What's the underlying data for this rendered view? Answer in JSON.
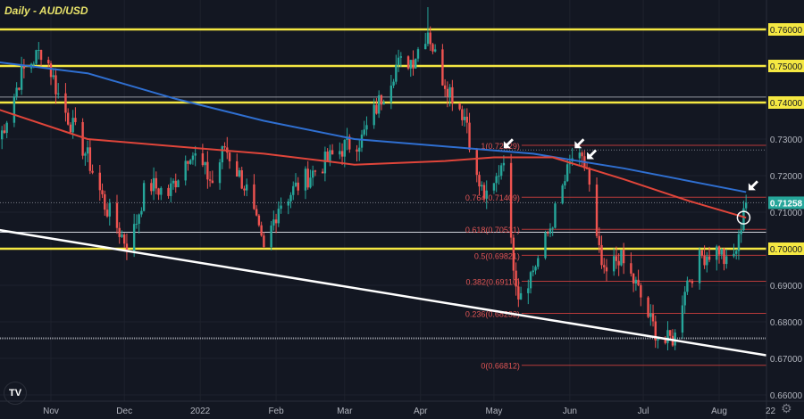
{
  "title": "Daily - AUD/USD",
  "logo": "TV",
  "settings_icon": "gear-icon",
  "colors": {
    "background": "#131722",
    "up": "#26a69a",
    "down": "#ef5350",
    "ma_blue": "#2f6fd1",
    "ma_red": "#e0453a",
    "support_resistance": "#f5e842",
    "fib": "#b83a3a",
    "trendline": "#ffffff",
    "last_price_badge": "#26a69a"
  },
  "chart_data": {
    "type": "candlestick",
    "title": "Daily - AUD/USD",
    "xlim": [
      "2021-10-11",
      "2022-08-28"
    ],
    "ylim": [
      0.655,
      0.767
    ],
    "grid": true,
    "x_ticks": [
      {
        "label": "Nov",
        "date": "2021-11-01"
      },
      {
        "label": "Dec",
        "date": "2021-12-01"
      },
      {
        "label": "2022",
        "date": "2022-01-01"
      },
      {
        "label": "Feb",
        "date": "2022-02-01"
      },
      {
        "label": "Mar",
        "date": "2022-03-01"
      },
      {
        "label": "Apr",
        "date": "2022-04-01"
      },
      {
        "label": "May",
        "date": "2022-05-01"
      },
      {
        "label": "Jun",
        "date": "2022-06-01"
      },
      {
        "label": "Jul",
        "date": "2022-07-01"
      },
      {
        "label": "Aug",
        "date": "2022-08-01"
      },
      {
        "label": "22",
        "date": "2022-08-22"
      }
    ],
    "y_ticks": [
      "0.76000",
      "0.75000",
      "0.74000",
      "0.73000",
      "0.72000",
      "0.71000",
      "0.70000",
      "0.69000",
      "0.68000",
      "0.67000",
      "0.66000"
    ],
    "highlighted_y_ticks": [
      "0.76000",
      "0.75000",
      "0.74000",
      "0.70000"
    ],
    "last_price": "0.71258",
    "price_path": [
      [
        "2021-10-11",
        0.73
      ],
      [
        "2021-10-20",
        0.748
      ],
      [
        "2021-10-29",
        0.755
      ],
      [
        "2021-11-05",
        0.74
      ],
      [
        "2021-11-16",
        0.725
      ],
      [
        "2021-11-23",
        0.712
      ],
      [
        "2021-12-03",
        0.7
      ],
      [
        "2021-12-10",
        0.718
      ],
      [
        "2021-12-19",
        0.715
      ],
      [
        "2021-12-28",
        0.727
      ],
      [
        "2022-01-06",
        0.718
      ],
      [
        "2022-01-11",
        0.728
      ],
      [
        "2022-01-20",
        0.716
      ],
      [
        "2022-01-27",
        0.699
      ],
      [
        "2022-02-02",
        0.712
      ],
      [
        "2022-02-11",
        0.718
      ],
      [
        "2022-02-18",
        0.722
      ],
      [
        "2022-03-01",
        0.728
      ],
      [
        "2022-03-08",
        0.73
      ],
      [
        "2022-03-15",
        0.74
      ],
      [
        "2022-03-22",
        0.75
      ],
      [
        "2022-03-29",
        0.752
      ],
      [
        "2022-04-04",
        0.76
      ],
      [
        "2022-04-09",
        0.748
      ],
      [
        "2022-04-16",
        0.74
      ],
      [
        "2022-04-20",
        0.735
      ],
      [
        "2022-04-23",
        0.72
      ],
      [
        "2022-04-29",
        0.712
      ],
      [
        "2022-05-05",
        0.726
      ],
      [
        "2022-05-07",
        0.705
      ],
      [
        "2022-05-11",
        0.688
      ],
      [
        "2022-05-16",
        0.693
      ],
      [
        "2022-05-21",
        0.7
      ],
      [
        "2022-05-27",
        0.712
      ],
      [
        "2022-06-02",
        0.725
      ],
      [
        "2022-06-08",
        0.722
      ],
      [
        "2022-06-11",
        0.705
      ],
      [
        "2022-06-15",
        0.692
      ],
      [
        "2022-06-21",
        0.698
      ],
      [
        "2022-06-28",
        0.69
      ],
      [
        "2022-07-04",
        0.68
      ],
      [
        "2022-07-09",
        0.674
      ],
      [
        "2022-07-14",
        0.676
      ],
      [
        "2022-07-18",
        0.69
      ],
      [
        "2022-07-25",
        0.698
      ],
      [
        "2022-08-01",
        0.7
      ],
      [
        "2022-08-05",
        0.694
      ],
      [
        "2022-08-09",
        0.702
      ],
      [
        "2022-08-11",
        0.712
      ],
      [
        "2022-08-12",
        0.7126
      ]
    ],
    "moving_averages": [
      {
        "color": "blue",
        "values": [
          [
            "2021-10-11",
            0.751
          ],
          [
            "2021-11-16",
            0.748
          ],
          [
            "2021-12-22",
            0.741
          ],
          [
            "2022-01-27",
            0.735
          ],
          [
            "2022-03-05",
            0.73
          ],
          [
            "2022-04-11",
            0.728
          ],
          [
            "2022-05-17",
            0.726
          ],
          [
            "2022-06-23",
            0.722
          ],
          [
            "2022-08-12",
            0.7155
          ]
        ]
      },
      {
        "color": "red",
        "values": [
          [
            "2021-10-11",
            0.738
          ],
          [
            "2021-11-16",
            0.73
          ],
          [
            "2021-12-22",
            0.728
          ],
          [
            "2022-01-27",
            0.726
          ],
          [
            "2022-03-05",
            0.723
          ],
          [
            "2022-04-11",
            0.724
          ],
          [
            "2022-05-01",
            0.725
          ],
          [
            "2022-05-25",
            0.725
          ],
          [
            "2022-06-23",
            0.719
          ],
          [
            "2022-07-20",
            0.713
          ],
          [
            "2022-08-12",
            0.7085
          ]
        ]
      }
    ],
    "horizontal_levels": [
      {
        "price": 0.76,
        "style": "yellow"
      },
      {
        "price": 0.75,
        "style": "yellow"
      },
      {
        "price": 0.74,
        "style": "yellow"
      },
      {
        "price": 0.7,
        "style": "yellow"
      },
      {
        "price": 0.7415,
        "style": "gray"
      },
      {
        "price": 0.7045,
        "style": "white"
      },
      {
        "price": 0.6755,
        "style": "gray-dotted"
      },
      {
        "price": 0.727,
        "style": "dotted"
      },
      {
        "price": 0.71258,
        "style": "dotted"
      }
    ],
    "fibonacci": {
      "start_date": "2022-05-05",
      "levels": [
        {
          "label": "1(0.72829)",
          "price": 0.72829
        },
        {
          "label": "0.764(0.71409)",
          "price": 0.71409
        },
        {
          "label": "0.618(0.70531)",
          "price": 0.70531
        },
        {
          "label": "0.5(0.69821)",
          "price": 0.69821
        },
        {
          "label": "0.382(0.69110)",
          "price": 0.6911
        },
        {
          "label": "0.236(0.68232)",
          "price": 0.68232
        },
        {
          "label": "0(0.66812)",
          "price": 0.66812
        }
      ]
    },
    "trendline": [
      [
        "2021-10-11",
        0.7051
      ],
      [
        "2022-08-28",
        0.67
      ]
    ],
    "annotations": [
      {
        "type": "arrow",
        "date": "2022-05-05",
        "price": 0.7275
      },
      {
        "type": "arrow",
        "date": "2022-06-03",
        "price": 0.7275
      },
      {
        "type": "arrow",
        "date": "2022-06-08",
        "price": 0.7245
      },
      {
        "type": "arrow",
        "date": "2022-08-13",
        "price": 0.716
      },
      {
        "type": "circle",
        "date": "2022-08-11",
        "price": 0.7085
      }
    ]
  }
}
